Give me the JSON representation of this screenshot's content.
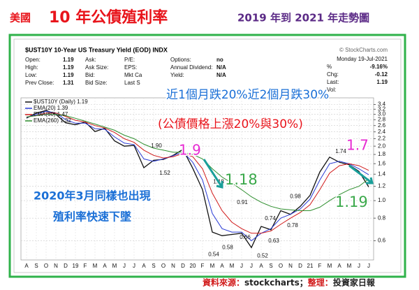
{
  "chart_data": {
    "type": "line",
    "title_parts": [
      {
        "text": "美國",
        "color": "#e8141b"
      },
      {
        "text": "10 年公債殖利率",
        "color": "#e8141b"
      },
      {
        "text": "2019 年到 2021 年走勢圖",
        "color": "#5b2a86"
      }
    ],
    "chart_header": "$UST10Y 10-Year US Treasury Yield (EOD) INDX",
    "credit": "© StockCharts.com",
    "date": "Monday 19-Jul-2021",
    "quote": [
      [
        {
          "label": "Open:",
          "value": 1.19
        },
        {
          "label": "High:",
          "value": 1.19
        },
        {
          "label": "Low:",
          "value": 1.19
        },
        {
          "label": "Prev Close:",
          "value": 1.31
        }
      ],
      [
        {
          "label": "Ask:"
        },
        {
          "label": "Ask Size:"
        },
        {
          "label": "Bid:"
        },
        {
          "label": "Bid Size:"
        }
      ],
      [
        {
          "label": "P/E:"
        },
        {
          "label": "EPS:"
        },
        {
          "label": "Mkt Ca"
        },
        {
          "label": "Last S"
        }
      ],
      [
        {
          "label": "Options:",
          "value": "no"
        },
        {
          "label": "Annual Dividend:",
          "value": "N/A"
        },
        {
          "label": "Yield:",
          "value": "N/A"
        }
      ],
      [
        {
          "label": "%",
          "value": "-9.16%"
        },
        {
          "label": "Chg:",
          "value": -0.12
        },
        {
          "label": "Last:",
          "value": 1.19
        },
        {
          "label": "Vol:"
        }
      ]
    ],
    "categories": [
      "A",
      "S",
      "O",
      "N",
      "D",
      "19",
      "F",
      "M",
      "A",
      "M",
      "J",
      "J",
      "A",
      "S",
      "O",
      "N",
      "D",
      "20",
      "F",
      "M",
      "A",
      "M",
      "J",
      "J",
      "A",
      "S",
      "O",
      "N",
      "D",
      "21",
      "F",
      "M",
      "A",
      "M",
      "J",
      "J"
    ],
    "series": [
      {
        "name": "$UST10Y (Daily) 1.19",
        "color": "#111111",
        "values": [
          2.86,
          3.05,
          3.15,
          3.0,
          2.69,
          2.63,
          2.72,
          2.41,
          2.51,
          2.14,
          2.0,
          2.02,
          1.52,
          1.67,
          1.69,
          1.78,
          1.92,
          1.51,
          1.15,
          0.67,
          0.64,
          0.65,
          0.66,
          0.55,
          0.72,
          0.69,
          0.88,
          0.84,
          0.93,
          1.07,
          1.44,
          1.74,
          1.63,
          1.58,
          1.45,
          1.19
        ]
      },
      {
        "name": "EMA(20) 1.39",
        "color": "#2a3cd6",
        "values": [
          2.88,
          3.0,
          3.12,
          3.05,
          2.8,
          2.68,
          2.68,
          2.5,
          2.48,
          2.25,
          2.08,
          2.04,
          1.7,
          1.65,
          1.7,
          1.77,
          1.86,
          1.63,
          1.3,
          0.85,
          0.7,
          0.67,
          0.67,
          0.6,
          0.66,
          0.7,
          0.8,
          0.84,
          0.9,
          1.02,
          1.3,
          1.6,
          1.65,
          1.6,
          1.5,
          1.39
        ]
      },
      {
        "name": "EMA(60) 1.47",
        "color": "#d11a1a",
        "values": [
          2.9,
          2.95,
          3.05,
          3.05,
          2.92,
          2.78,
          2.72,
          2.6,
          2.52,
          2.38,
          2.2,
          2.1,
          1.9,
          1.78,
          1.72,
          1.75,
          1.82,
          1.75,
          1.5,
          1.1,
          0.88,
          0.76,
          0.7,
          0.66,
          0.66,
          0.68,
          0.74,
          0.8,
          0.86,
          0.95,
          1.15,
          1.42,
          1.56,
          1.6,
          1.56,
          1.47
        ]
      },
      {
        "name": "EMA(260) 1.32",
        "color": "#2f8f2f",
        "values": [
          2.9,
          2.95,
          3.0,
          3.0,
          2.95,
          2.85,
          2.75,
          2.65,
          2.55,
          2.45,
          2.3,
          2.2,
          2.05,
          1.95,
          1.9,
          1.85,
          1.85,
          1.8,
          1.7,
          1.5,
          1.35,
          1.25,
          1.15,
          1.05,
          0.98,
          0.93,
          0.9,
          0.89,
          0.88,
          0.88,
          0.92,
          1.0,
          1.08,
          1.15,
          1.2,
          1.32
        ]
      }
    ],
    "ylim": [
      0.47,
      3.7
    ],
    "log_scale": true,
    "grid": true,
    "yticks": [
      0.6,
      0.8,
      {
        "value": 1,
        "label": "1.0"
      },
      1.2,
      1.4,
      1.6,
      1.8,
      {
        "value": 2,
        "label": "2.0"
      },
      2.2,
      2.4,
      2.6,
      2.8,
      {
        "value": 3,
        "label": "3.0"
      },
      3.2,
      3.4
    ],
    "price_labels": [
      {
        "value": 1.9,
        "label": "1.90"
      },
      1.52,
      1.18,
      0.91,
      0.54,
      0.58,
      0.66,
      0.52,
      0.63,
      0.74,
      0.78,
      0.98,
      1.74
    ],
    "annotations": [
      {
        "text": "近1個月跌20%近2個月跌30%",
        "color": "#1a6fd6"
      },
      {
        "text": "(公債價格上漲20%與30%)",
        "color": "#e8141b"
      },
      {
        "text": "1.9",
        "color": "#e62bd1"
      },
      {
        "text": "1.18",
        "color": "#3aa84a"
      },
      {
        "text": "1.7",
        "color": "#e62bd1"
      },
      {
        "text": "1.19",
        "color": "#3aa84a"
      },
      {
        "text": "2020年3月同樣也出現",
        "color": "#1a6fd6"
      },
      {
        "text": "殖利率快速下墜",
        "color": "#1a6fd6"
      }
    ],
    "source_parts": [
      {
        "text": "資料來源：",
        "color": "#d11a1a"
      },
      {
        "text": "stockcharts；",
        "color": "#222222"
      },
      {
        "text": "整理：",
        "color": "#d11a1a"
      },
      {
        "text": "投資家日報",
        "color": "#222222"
      }
    ]
  }
}
